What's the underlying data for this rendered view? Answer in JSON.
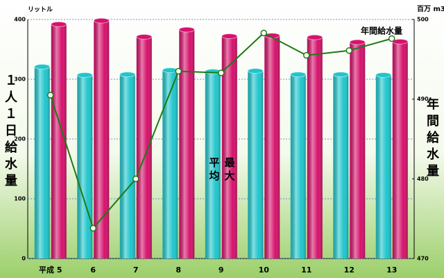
{
  "chart_data": {
    "type": "bar",
    "y_label": "１人１日給水量",
    "y2_label": "年間給水量",
    "y_unit": "リットル",
    "y2_unit": "百万 m3",
    "annotation": "年間給水量",
    "categories": [
      "平成 5",
      "6",
      "7",
      "8",
      "9",
      "10",
      "11",
      "12",
      "13"
    ],
    "series": [
      {
        "name": "平均",
        "color": "#1fc6cc",
        "values": [
          321,
          307,
          308,
          315,
          313,
          314,
          308,
          308,
          307
        ]
      },
      {
        "name": "最大",
        "color": "#d6126c",
        "values": [
          392,
          398,
          371,
          383,
          372,
          373,
          370,
          362,
          363
        ]
      },
      {
        "name": "年間給水量",
        "type": "line",
        "axis": "y2",
        "color": "#1d7a14",
        "values": [
          490.5,
          473.8,
          480.0,
          493.5,
          493.3,
          498.3,
          495.5,
          496.1,
          497.6
        ]
      }
    ],
    "ylim": [
      0,
      400
    ],
    "yticks": [
      0,
      100,
      200,
      300,
      400
    ],
    "y2lim": [
      470,
      500
    ],
    "y2ticks": [
      470,
      480,
      490,
      500
    ],
    "grid": true
  }
}
